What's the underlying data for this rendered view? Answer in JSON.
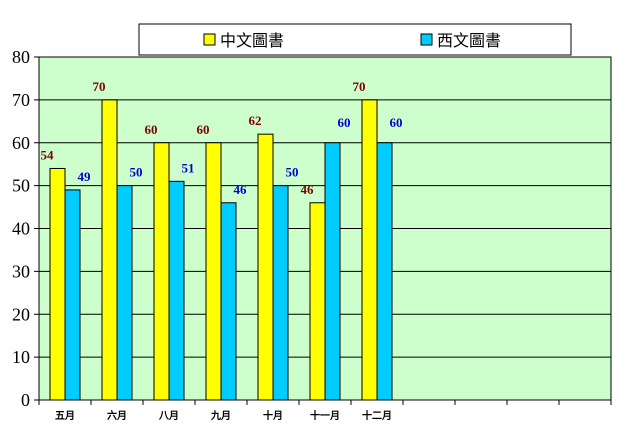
{
  "colors": {
    "plot_bg": "#ccffcc",
    "chinese": "#ffff00",
    "western": "#00ccff",
    "chinese_label": "#800000",
    "western_label": "#0000cc",
    "grid": "#000000"
  },
  "chart_data": {
    "type": "bar",
    "categories": [
      "五月",
      "六月",
      "八月",
      "九月",
      "十月",
      "十一月",
      "十二月"
    ],
    "slots": 11,
    "series": [
      {
        "name": "中文圖書",
        "values": [
          54,
          70,
          60,
          60,
          62,
          46,
          70
        ]
      },
      {
        "name": "西文圖書",
        "values": [
          49,
          50,
          51,
          46,
          50,
          60,
          60
        ]
      }
    ],
    "yticks": [
      0,
      10,
      20,
      30,
      40,
      50,
      60,
      70,
      80
    ],
    "ylim": [
      0,
      80
    ],
    "grid": true,
    "legend": "top"
  }
}
